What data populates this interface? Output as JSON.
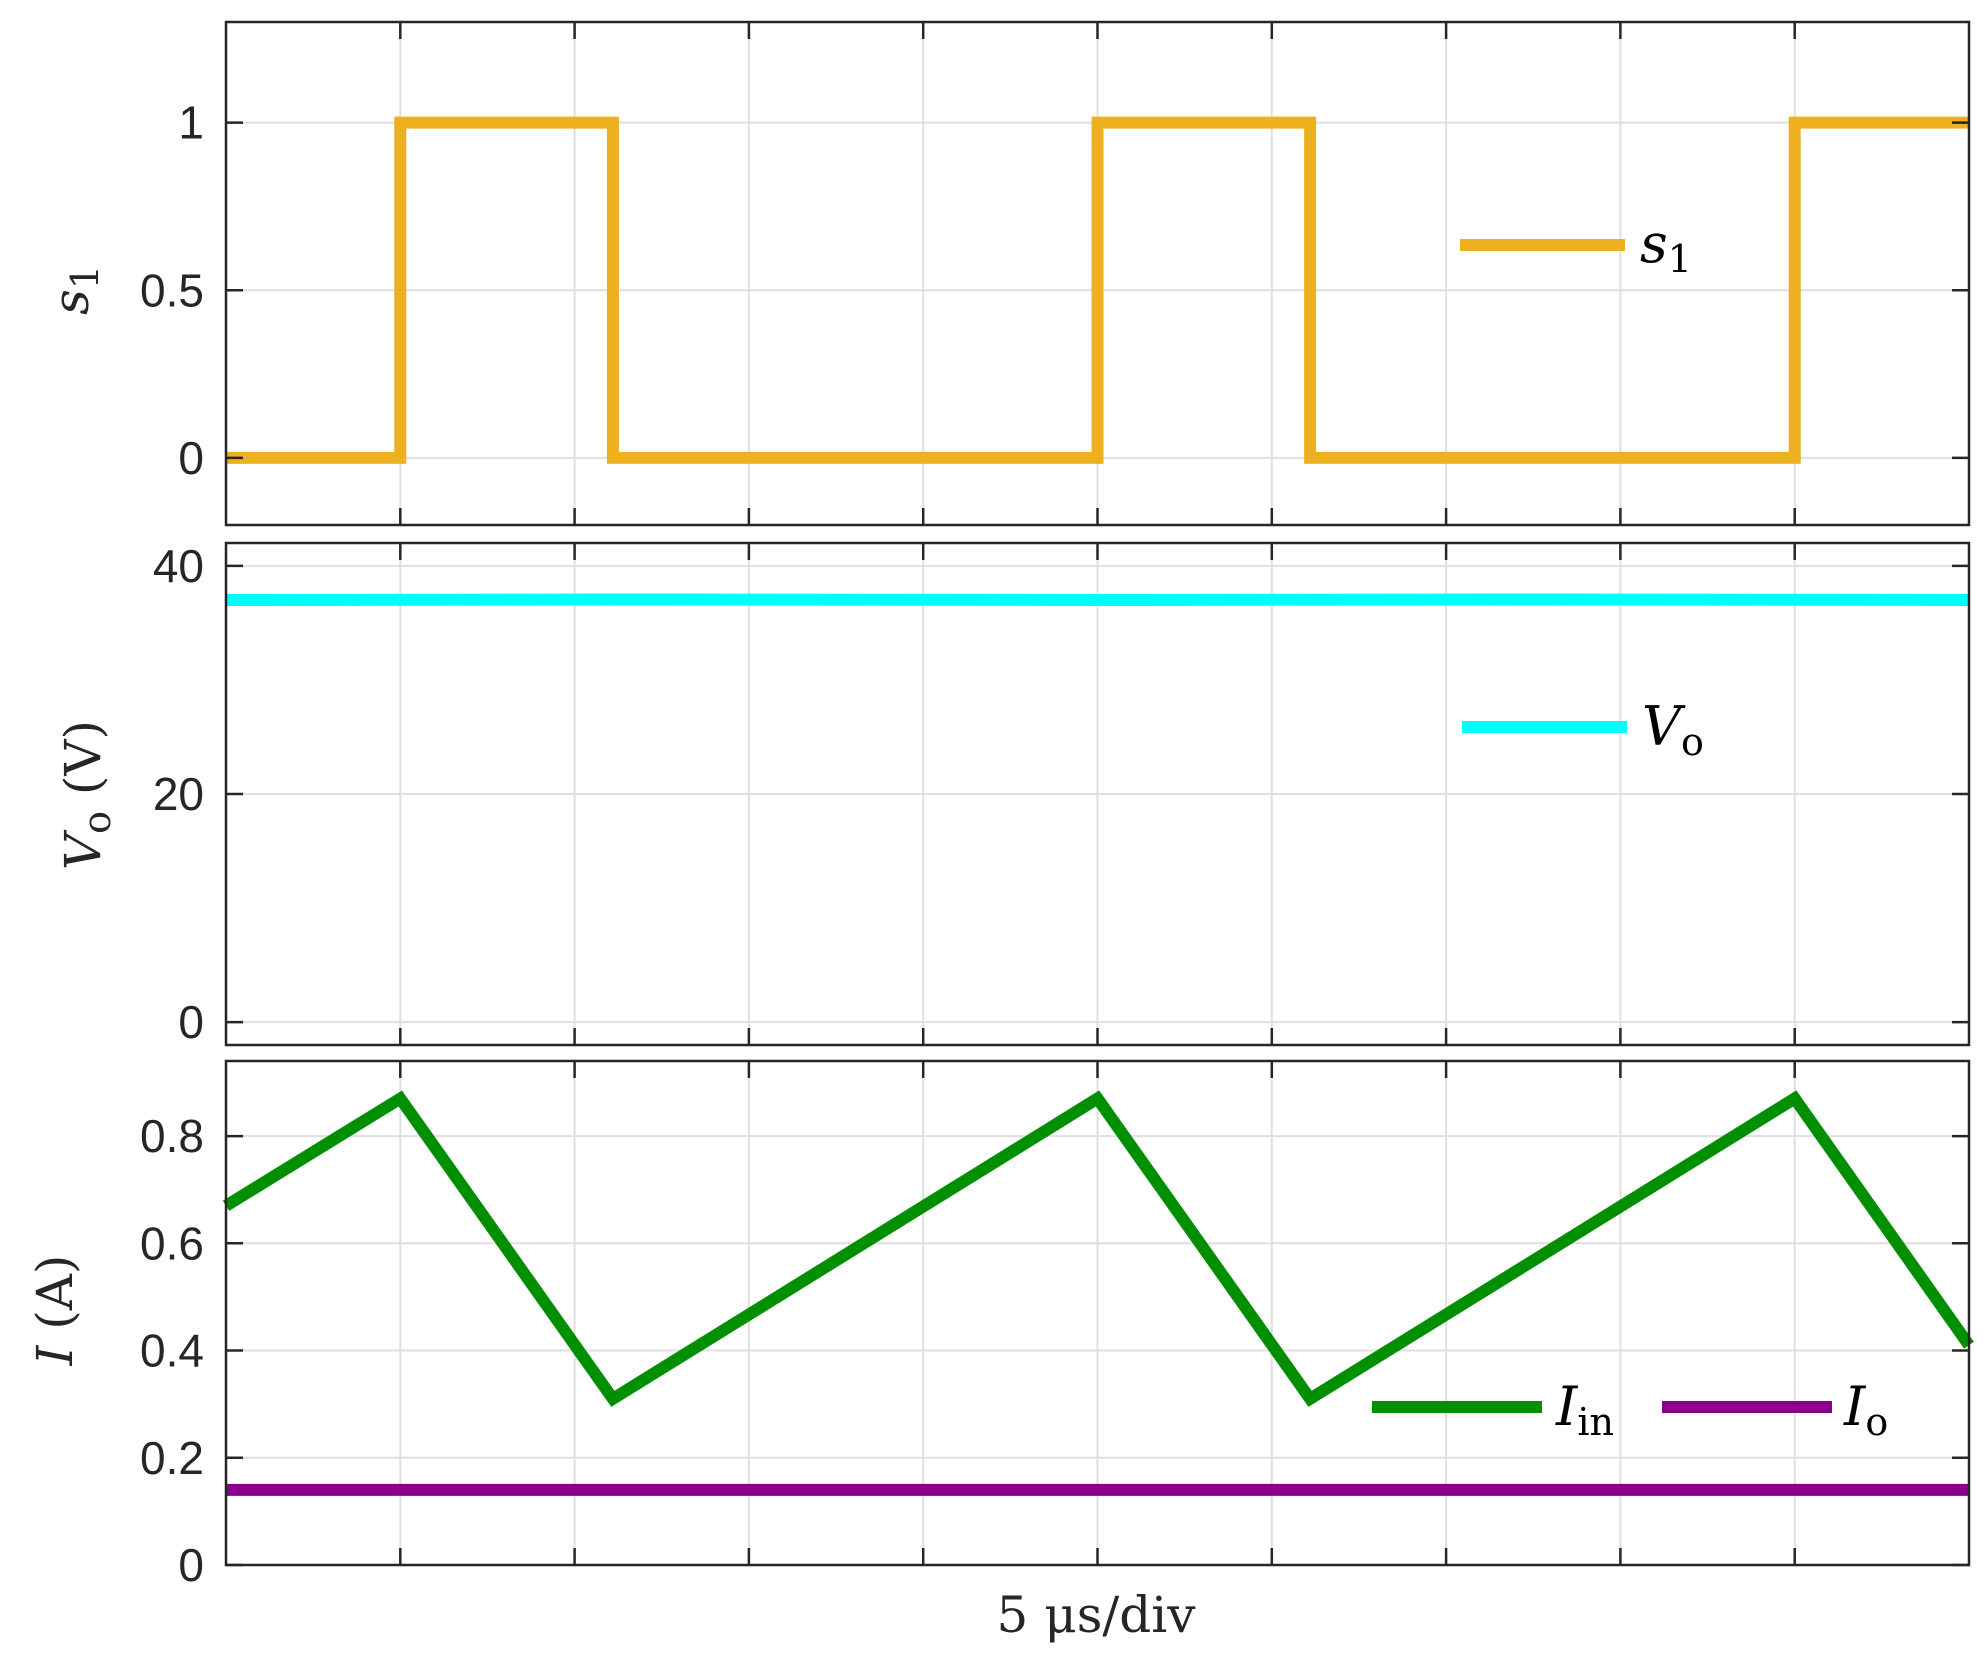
{
  "chart_data": [
    {
      "type": "line",
      "title": "",
      "xlabel": "",
      "ylabel": "s1",
      "x": [
        0,
        5,
        10,
        15,
        20,
        25,
        30,
        35,
        40,
        45,
        50
      ],
      "xlim": [
        0,
        50
      ],
      "ylim": [
        -0.2,
        1.3
      ],
      "yticks": [
        0,
        0.5,
        1
      ],
      "ytick_labels": [
        "0",
        "0.5",
        "1"
      ],
      "grid": true,
      "legend_position": "right",
      "series": [
        {
          "name": "s1",
          "color": "#EDB120",
          "points": [
            [
              0,
              0
            ],
            [
              5,
              0
            ],
            [
              5,
              1
            ],
            [
              11.1,
              1
            ],
            [
              11.1,
              0
            ],
            [
              25,
              0
            ],
            [
              25,
              1
            ],
            [
              31.1,
              1
            ],
            [
              31.1,
              0
            ],
            [
              45,
              0
            ],
            [
              45,
              1
            ],
            [
              50,
              1
            ]
          ]
        }
      ]
    },
    {
      "type": "line",
      "title": "",
      "xlabel": "",
      "ylabel": "Vo (V)",
      "xlim": [
        0,
        50
      ],
      "ylim": [
        -2,
        42
      ],
      "yticks": [
        0,
        20,
        40
      ],
      "ytick_labels": [
        "0",
        "20",
        "40"
      ],
      "grid": true,
      "legend_position": "right",
      "series": [
        {
          "name": "Vo",
          "color": "#00FFFF",
          "points": [
            [
              0,
              37.0
            ],
            [
              12.5,
              37.05
            ],
            [
              25,
              37.0
            ],
            [
              37.5,
              37.05
            ],
            [
              50,
              37.0
            ]
          ]
        }
      ]
    },
    {
      "type": "line",
      "title": "",
      "xlabel": "5 μs/div",
      "ylabel": "I (A)",
      "xlim": [
        0,
        50
      ],
      "ylim": [
        0,
        0.94
      ],
      "yticks": [
        0,
        0.2,
        0.4,
        0.6,
        0.8
      ],
      "ytick_labels": [
        "0",
        "0.2",
        "0.4",
        "0.6",
        "0.8"
      ],
      "grid": true,
      "legend_position": "lower-right",
      "series": [
        {
          "name": "Iin",
          "color": "#008F00",
          "points": [
            [
              0,
              0.67
            ],
            [
              5,
              0.87
            ],
            [
              11.1,
              0.31
            ],
            [
              25,
              0.87
            ],
            [
              31.1,
              0.31
            ],
            [
              45,
              0.87
            ],
            [
              50,
              0.41
            ]
          ]
        },
        {
          "name": "Io",
          "color": "#8B008B",
          "points": [
            [
              0,
              0.14
            ],
            [
              50,
              0.14
            ]
          ]
        }
      ]
    }
  ],
  "legend": {
    "s1": {
      "main": "s",
      "sub": "1"
    },
    "vo": {
      "main": "V",
      "sub": "o"
    },
    "iin": {
      "main": "I",
      "sub": "in"
    },
    "io": {
      "main": "I",
      "sub": "o"
    }
  },
  "axis_labels": {
    "top_y": {
      "main": "s",
      "sub": "1"
    },
    "mid_y": {
      "main": "V",
      "sub": "o",
      "rest": " (V)"
    },
    "bot_y": {
      "main": "I",
      "rest": " (A)"
    },
    "x": "5 μs/div"
  }
}
